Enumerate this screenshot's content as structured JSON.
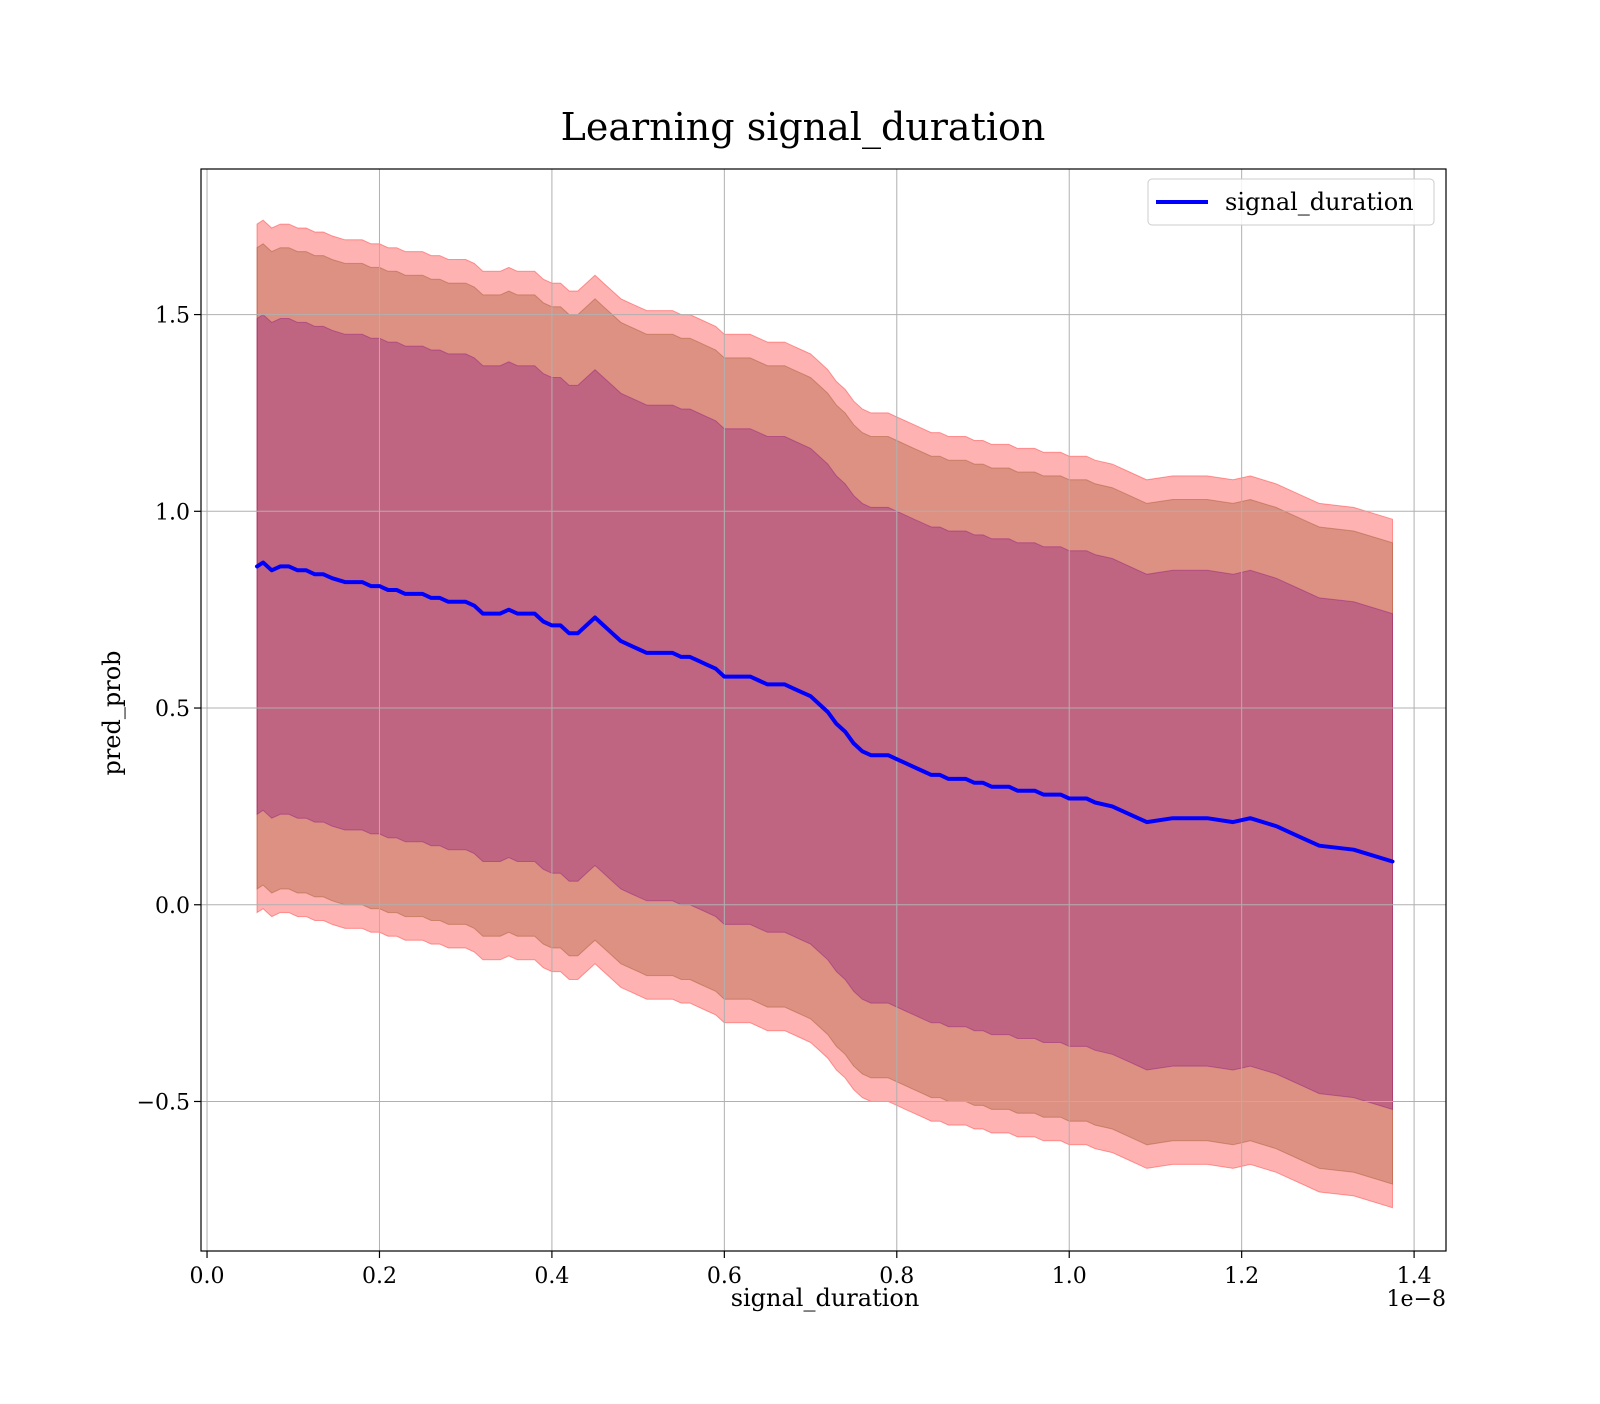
{
  "chart_data": {
    "type": "line",
    "title": "Learning signal_duration",
    "xlabel": "signal_duration",
    "ylabel": "pred_prob",
    "x_offset_label": "1e−8",
    "xlim": [
      -0.007,
      1.437
    ],
    "ylim": [
      -0.88,
      1.87
    ],
    "x_tick_values": [
      0.0,
      0.2,
      0.4,
      0.6,
      0.8,
      1.0,
      1.2,
      1.4
    ],
    "x_tick_labels": [
      "0.0",
      "0.2",
      "0.4",
      "0.6",
      "0.8",
      "1.0",
      "1.2",
      "1.4"
    ],
    "y_tick_values": [
      -0.5,
      0.0,
      0.5,
      1.0,
      1.5
    ],
    "y_tick_labels": [
      "−0.5",
      "0.0",
      "0.5",
      "1.0",
      "1.5"
    ],
    "grid": true,
    "legend_position": "top-right",
    "colors": {
      "line": "#0000ff",
      "band_outer": "#ff0000",
      "band_middle": "#8b4513",
      "band_inner": "#800080",
      "grid": "#b0b0b0"
    },
    "series": [
      {
        "name": "signal_duration",
        "x": [
          0.058,
          0.065,
          0.075,
          0.085,
          0.095,
          0.105,
          0.115,
          0.125,
          0.135,
          0.145,
          0.16,
          0.17,
          0.18,
          0.19,
          0.2,
          0.21,
          0.22,
          0.23,
          0.24,
          0.25,
          0.26,
          0.27,
          0.28,
          0.29,
          0.3,
          0.31,
          0.32,
          0.33,
          0.34,
          0.35,
          0.36,
          0.37,
          0.38,
          0.39,
          0.4,
          0.41,
          0.42,
          0.43,
          0.44,
          0.45,
          0.46,
          0.47,
          0.48,
          0.49,
          0.5,
          0.51,
          0.52,
          0.53,
          0.54,
          0.55,
          0.56,
          0.57,
          0.58,
          0.59,
          0.6,
          0.61,
          0.62,
          0.63,
          0.64,
          0.65,
          0.66,
          0.67,
          0.68,
          0.69,
          0.7,
          0.71,
          0.72,
          0.73,
          0.74,
          0.75,
          0.76,
          0.77,
          0.78,
          0.79,
          0.8,
          0.81,
          0.82,
          0.83,
          0.84,
          0.85,
          0.86,
          0.87,
          0.88,
          0.89,
          0.9,
          0.91,
          0.92,
          0.93,
          0.94,
          0.95,
          0.96,
          0.97,
          0.98,
          0.99,
          1.0,
          1.01,
          1.02,
          1.03,
          1.05,
          1.07,
          1.09,
          1.12,
          1.16,
          1.19,
          1.21,
          1.24,
          1.27,
          1.29,
          1.33,
          1.375
        ],
        "y": [
          0.86,
          0.87,
          0.85,
          0.86,
          0.86,
          0.85,
          0.85,
          0.84,
          0.84,
          0.83,
          0.82,
          0.82,
          0.82,
          0.81,
          0.81,
          0.8,
          0.8,
          0.79,
          0.79,
          0.79,
          0.78,
          0.78,
          0.77,
          0.77,
          0.77,
          0.76,
          0.74,
          0.74,
          0.74,
          0.75,
          0.74,
          0.74,
          0.74,
          0.72,
          0.71,
          0.71,
          0.69,
          0.69,
          0.71,
          0.73,
          0.71,
          0.69,
          0.67,
          0.66,
          0.65,
          0.64,
          0.64,
          0.64,
          0.64,
          0.63,
          0.63,
          0.62,
          0.61,
          0.6,
          0.58,
          0.58,
          0.58,
          0.58,
          0.57,
          0.56,
          0.56,
          0.56,
          0.55,
          0.54,
          0.53,
          0.51,
          0.49,
          0.46,
          0.44,
          0.41,
          0.39,
          0.38,
          0.38,
          0.38,
          0.37,
          0.36,
          0.35,
          0.34,
          0.33,
          0.33,
          0.32,
          0.32,
          0.32,
          0.31,
          0.31,
          0.3,
          0.3,
          0.3,
          0.29,
          0.29,
          0.29,
          0.28,
          0.28,
          0.28,
          0.27,
          0.27,
          0.27,
          0.26,
          0.25,
          0.23,
          0.21,
          0.22,
          0.22,
          0.21,
          0.22,
          0.2,
          0.17,
          0.15,
          0.14,
          0.11
        ]
      }
    ],
    "bands": [
      {
        "label": "",
        "lower_offset": -0.88,
        "upper_offset": 0.87,
        "color": "#ff0000"
      },
      {
        "label": "",
        "lower_offset": -0.82,
        "upper_offset": 0.81,
        "color": "#8b4513"
      },
      {
        "label": "",
        "lower_offset": -0.63,
        "upper_offset": 0.63,
        "color": "#800080"
      }
    ]
  }
}
